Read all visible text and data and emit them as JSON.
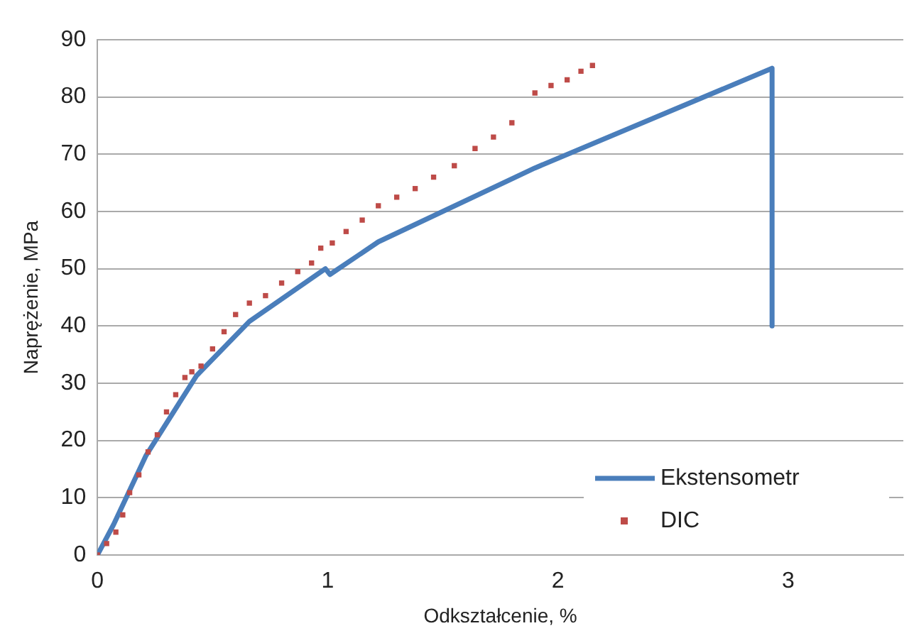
{
  "chart_data": {
    "type": "line",
    "xlabel": "Odkształcenie, %",
    "ylabel": "Naprężenie, MPa",
    "xlim": [
      0,
      3.5
    ],
    "xticks": [
      0,
      1,
      2,
      3
    ],
    "ylim": [
      0,
      90
    ],
    "yticks": [
      0,
      10,
      20,
      30,
      40,
      50,
      60,
      70,
      80,
      90
    ],
    "grid": "y",
    "legend": "bottom right",
    "series": [
      {
        "name": "Ekstensometr",
        "color": "#4a7ebb",
        "marker": "none",
        "x": [
          0,
          0.07,
          0.21,
          0.43,
          0.66,
          0.99,
          1.01,
          1.22,
          1.9,
          2.93,
          2.93
        ],
        "values": [
          0,
          5.3,
          17.3,
          31.3,
          40.8,
          50,
          49,
          54.7,
          67.6,
          85,
          40
        ]
      },
      {
        "name": "DIC",
        "type": "scatter",
        "color": "#be4b48",
        "marker": "square",
        "x": [
          0,
          0.04,
          0.08,
          0.11,
          0.14,
          0.18,
          0.22,
          0.26,
          0.3,
          0.34,
          0.38,
          0.41,
          0.45,
          0.5,
          0.55,
          0.6,
          0.66,
          0.73,
          0.8,
          0.87,
          0.93,
          0.97,
          1.02,
          1.08,
          1.15,
          1.22,
          1.3,
          1.38,
          1.46,
          1.55,
          1.64,
          1.72,
          1.8,
          1.9,
          1.97,
          2.04,
          2.1,
          2.15
        ],
        "values": [
          0,
          2,
          4,
          7,
          10.9,
          14,
          18,
          21,
          25,
          28,
          31,
          32,
          33,
          36,
          39,
          42,
          44,
          45.3,
          47.5,
          49.5,
          51,
          53.6,
          54.5,
          56.5,
          58.5,
          61,
          62.5,
          64,
          66,
          68,
          71,
          73,
          75.5,
          80.7,
          82,
          83,
          84.5,
          85.5
        ]
      }
    ]
  }
}
